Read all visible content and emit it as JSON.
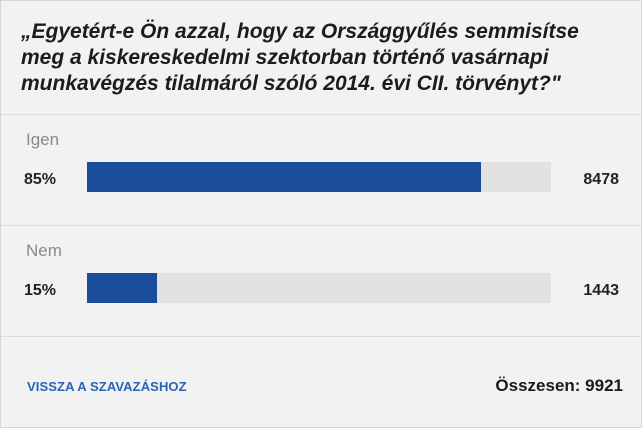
{
  "poll": {
    "question": "„Egyetért-e Ön azzal, hogy az Országgyűlés semmisítse meg a kiskereskedelmi szektorban történő vasárnapi munkavégzés tilalmáról szóló 2014. évi CII. törvényt?\"",
    "options": [
      {
        "label": "Igen",
        "percent_text": "85%",
        "percent": 85,
        "count": "8478"
      },
      {
        "label": "Nem",
        "percent_text": "15%",
        "percent": 15,
        "count": "1443"
      }
    ],
    "back_link": "VISSZA A SZAVAZÁSHOZ",
    "total_text": "Összesen: 9921",
    "colors": {
      "bar": "#1a4e9a",
      "track": "#e2e2e2",
      "link": "#2a63b5",
      "background": "#f2f2f2"
    }
  }
}
